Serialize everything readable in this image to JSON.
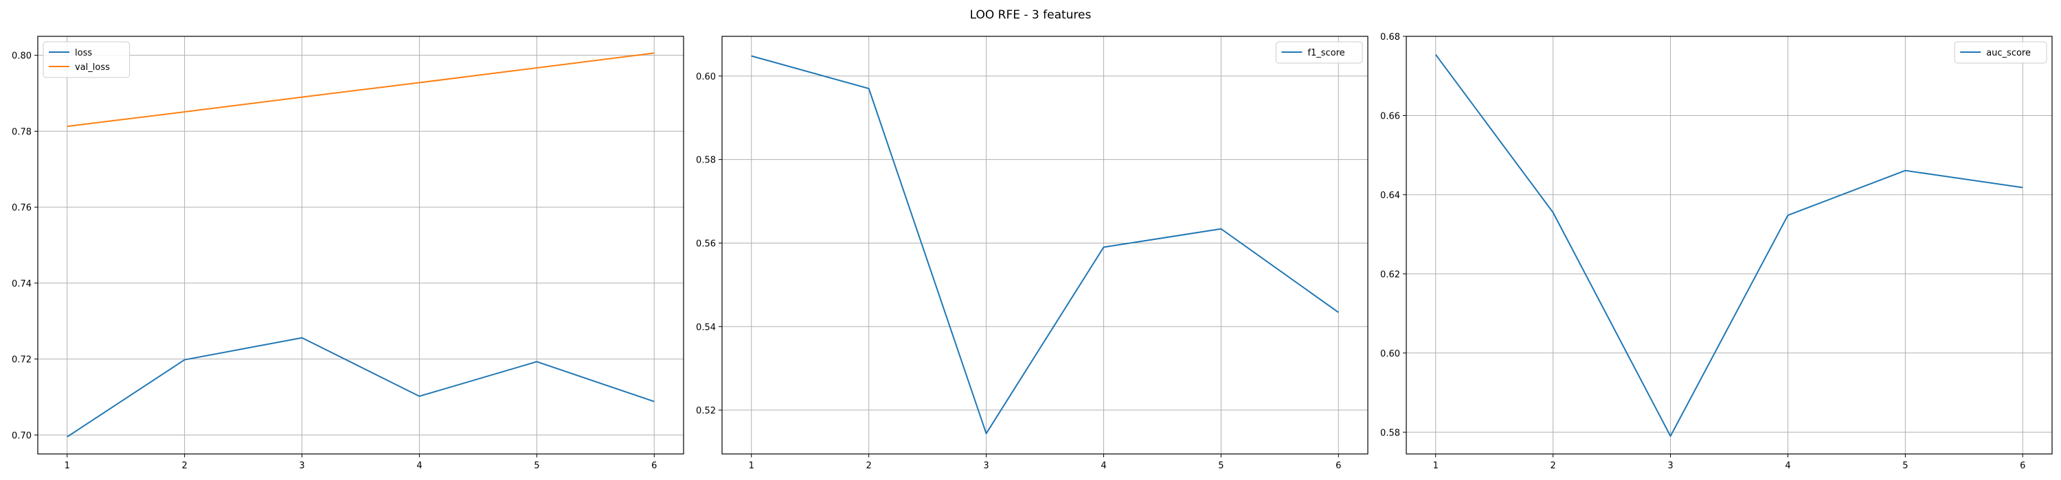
{
  "figure": {
    "title": "LOO RFE - 3 features"
  },
  "chart_data": [
    {
      "type": "line",
      "title": "",
      "xlabel": "",
      "ylabel": "",
      "x": [
        1,
        2,
        3,
        4,
        5,
        6
      ],
      "xlim": [
        0.75,
        6.25
      ],
      "ylim": [
        0.695,
        0.805
      ],
      "xticks": [
        1,
        2,
        3,
        4,
        5,
        6
      ],
      "yticks": [
        0.7,
        0.72,
        0.74,
        0.76,
        0.78,
        0.8
      ],
      "ytick_labels": [
        "0.70",
        "0.72",
        "0.74",
        "0.76",
        "0.78",
        "0.80"
      ],
      "grid": true,
      "legend_position": "top-left",
      "series": [
        {
          "name": "loss",
          "color": "#1f77b4",
          "values": [
            0.6995,
            0.7198,
            0.7256,
            0.7102,
            0.7193,
            0.7088
          ]
        },
        {
          "name": "val_loss",
          "color": "#ff7f0e",
          "values": [
            0.7813,
            0.7851,
            0.789,
            0.7928,
            0.7967,
            0.8006
          ]
        }
      ]
    },
    {
      "type": "line",
      "title": "",
      "xlabel": "",
      "ylabel": "",
      "x": [
        1,
        2,
        3,
        4,
        5,
        6
      ],
      "xlim": [
        0.75,
        6.25
      ],
      "ylim": [
        0.5095,
        0.6095
      ],
      "xticks": [
        1,
        2,
        3,
        4,
        5,
        6
      ],
      "yticks": [
        0.52,
        0.54,
        0.56,
        0.58,
        0.6
      ],
      "ytick_labels": [
        "0.52",
        "0.54",
        "0.56",
        "0.58",
        "0.60"
      ],
      "grid": true,
      "legend_position": "top-right",
      "series": [
        {
          "name": "f1_score",
          "color": "#1f77b4",
          "values": [
            0.6048,
            0.597,
            0.5144,
            0.559,
            0.5634,
            0.5434
          ]
        }
      ]
    },
    {
      "type": "line",
      "title": "",
      "xlabel": "",
      "ylabel": "",
      "x": [
        1,
        2,
        3,
        4,
        5,
        6
      ],
      "xlim": [
        0.75,
        6.25
      ],
      "ylim": [
        0.5745,
        0.68
      ],
      "xticks": [
        1,
        2,
        3,
        4,
        5,
        6
      ],
      "yticks": [
        0.58,
        0.6,
        0.62,
        0.64,
        0.66,
        0.68
      ],
      "ytick_labels": [
        "0.58",
        "0.60",
        "0.62",
        "0.64",
        "0.66",
        "0.68"
      ],
      "grid": true,
      "legend_position": "top-right",
      "series": [
        {
          "name": "auc_score",
          "color": "#1f77b4",
          "values": [
            0.6754,
            0.6355,
            0.579,
            0.6348,
            0.6461,
            0.6418
          ]
        }
      ]
    }
  ]
}
